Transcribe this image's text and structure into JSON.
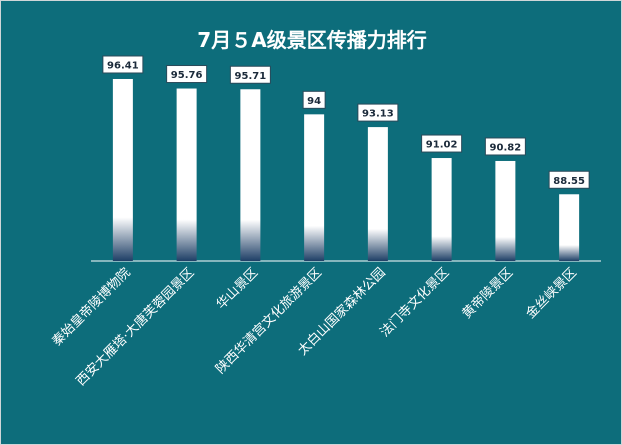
{
  "chart_data": {
    "type": "bar",
    "title": "7月５A级景区传播力排行",
    "categories": [
      "秦始皇帝陵博物院",
      "西安大雁塔·大唐芙蓉园景区",
      "华山景区",
      "陕西华清宫文化旅游景区",
      "太白山国家森林公园",
      "法门寺文化景区",
      "黄帝陵景区",
      "金丝峡景区"
    ],
    "values": [
      96.41,
      95.76,
      95.71,
      94,
      93.13,
      91.02,
      90.82,
      88.55
    ],
    "value_labels": [
      "96.41",
      "95.76",
      "95.71",
      "94",
      "93.13",
      "91.02",
      "90.82",
      "88.55"
    ],
    "ylim": [
      84,
      97.5
    ],
    "grid": false,
    "legend": "none"
  },
  "colors": {
    "background": "#0d6d7b",
    "bar_top": "#ffffff",
    "bar_bottom": "#1e3f66",
    "axis": "#ffffff"
  }
}
